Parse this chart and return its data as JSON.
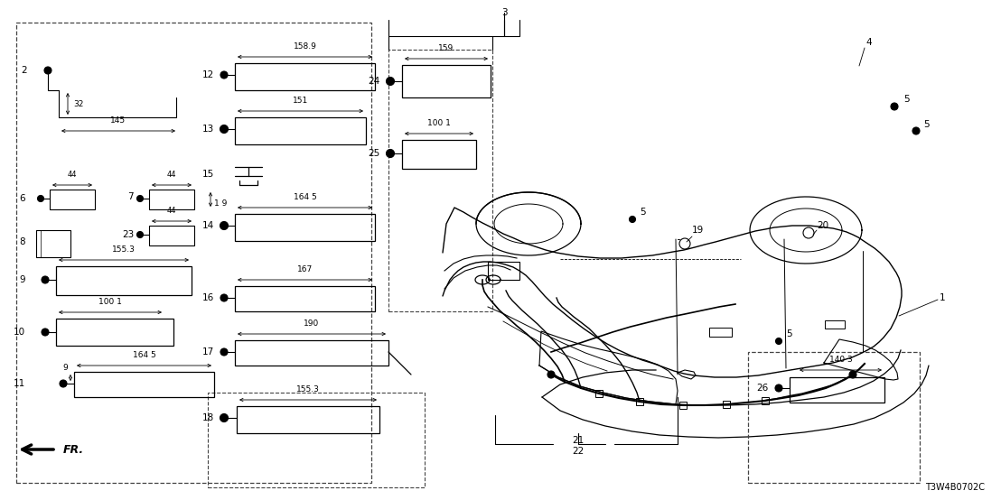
{
  "background_color": "#ffffff",
  "line_color": "#000000",
  "fig_width": 11.08,
  "fig_height": 5.54,
  "watermark": "T3W4B0702C"
}
